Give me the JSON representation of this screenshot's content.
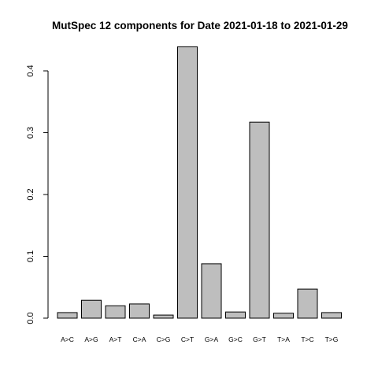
{
  "chart_data": {
    "type": "bar",
    "title": "MutSpec 12 components for Date 2021-01-18 to 2021-01-29",
    "xlabel": "",
    "ylabel": "",
    "categories": [
      "A>C",
      "A>G",
      "A>T",
      "C>A",
      "C>G",
      "C>T",
      "G>A",
      "G>C",
      "G>T",
      "T>A",
      "T>C",
      "T>G"
    ],
    "values": [
      0.009,
      0.029,
      0.02,
      0.023,
      0.005,
      0.439,
      0.088,
      0.01,
      0.317,
      0.008,
      0.047,
      0.009
    ],
    "ylim": [
      0,
      0.44
    ],
    "yticks": [
      0.0,
      0.1,
      0.2,
      0.3,
      0.4
    ],
    "ytick_labels": [
      "0.0",
      "0.1",
      "0.2",
      "0.3",
      "0.4"
    ],
    "grid": false,
    "legend": "none",
    "bar_color": "#bebebe",
    "edge_color": "#000000"
  }
}
